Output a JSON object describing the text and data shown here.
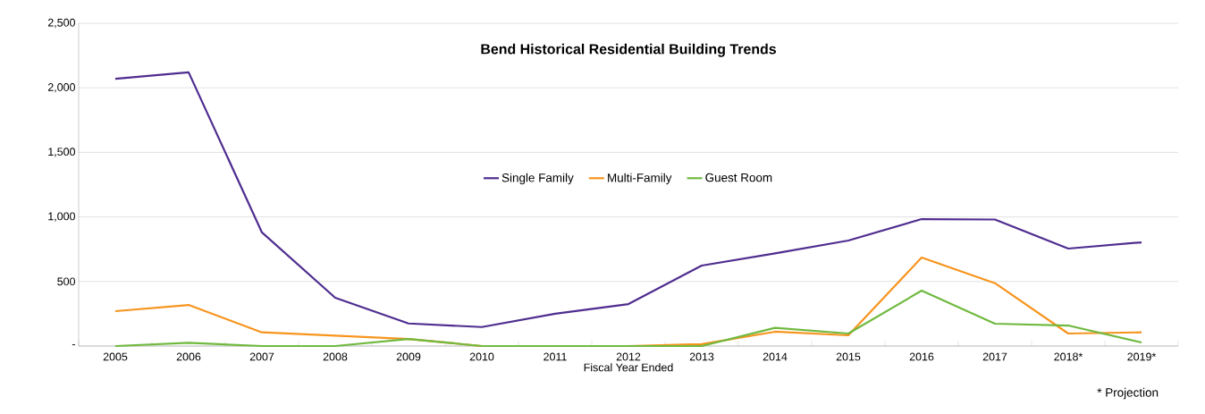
{
  "chart_data": {
    "type": "line",
    "title": "Bend Historical Residential Building Trends",
    "xlabel": "Fiscal Year Ended",
    "categories": [
      "2005",
      "2006",
      "2007",
      "2008",
      "2009",
      "2010",
      "2011",
      "2012",
      "2013",
      "2014",
      "2015",
      "2016",
      "2017",
      "2018*",
      "2019*"
    ],
    "series": [
      {
        "name": "Single Family",
        "color": "#4f2d8f",
        "values": [
          2070,
          2120,
          880,
          374,
          175,
          147,
          250,
          325,
          623,
          718,
          817,
          983,
          980,
          755,
          803
        ]
      },
      {
        "name": "Multi-Family",
        "color": "#f7941d",
        "values": [
          270,
          318,
          106,
          80,
          55,
          0,
          0,
          0,
          15,
          111,
          83,
          685,
          487,
          97,
          106
        ]
      },
      {
        "name": "Guest Room",
        "color": "#70b93f",
        "values": [
          0,
          25,
          0,
          0,
          55,
          0,
          0,
          0,
          0,
          141,
          97,
          429,
          173,
          159,
          28
        ]
      }
    ],
    "ylim": [
      0,
      2500
    ],
    "yticks": [
      {
        "value": 0,
        "label": "-"
      },
      {
        "value": 500,
        "label": "500"
      },
      {
        "value": 1000,
        "label": "1,000"
      },
      {
        "value": 1500,
        "label": "1,500"
      },
      {
        "value": 2000,
        "label": "2,000"
      },
      {
        "value": 2500,
        "label": "2,500"
      }
    ],
    "grid": "y",
    "legend": "center",
    "marker": "none",
    "line_style": "solid",
    "annotations": [
      "* Projection"
    ]
  }
}
